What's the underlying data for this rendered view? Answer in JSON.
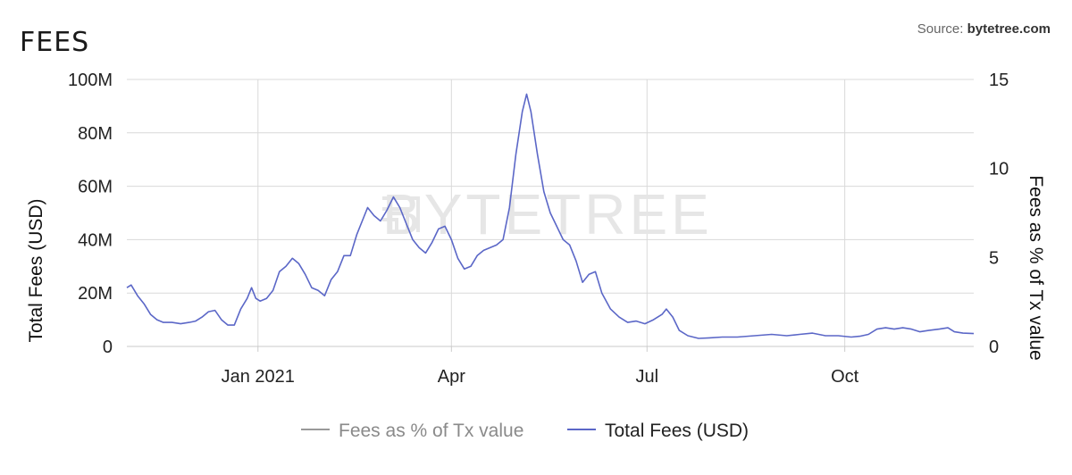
{
  "header": {
    "title": "FEES",
    "source_label": "Source:",
    "source_name": "bytetree.com"
  },
  "watermark": "BYTETREE",
  "chart_data": {
    "type": "line",
    "title": "FEES",
    "ylabel_left": "Total Fees (USD)",
    "ylabel_right": "Fees as % of Tx value",
    "ylim_left": [
      0,
      100000000
    ],
    "ylim_right": [
      0,
      15
    ],
    "yticks_left": [
      "0",
      "20M",
      "40M",
      "60M",
      "80M",
      "100M"
    ],
    "yticks_right": [
      "0",
      "5",
      "10",
      "15"
    ],
    "x_range": [
      "2020-11-01",
      "2021-11-30"
    ],
    "xticks": [
      {
        "label": "Jan 2021",
        "date": "2021-01-01"
      },
      {
        "label": "Apr",
        "date": "2021-04-01"
      },
      {
        "label": "Jul",
        "date": "2021-07-01"
      },
      {
        "label": "Oct",
        "date": "2021-10-01"
      }
    ],
    "grid": true,
    "legend_position": "bottom-center",
    "series": [
      {
        "name": "Fees as % of Tx value",
        "color": "#999999",
        "axis": "right",
        "points": []
      },
      {
        "name": "Total Fees (USD)",
        "color": "#5b67c7",
        "axis": "left",
        "points": [
          [
            "2020-11-01",
            22000000
          ],
          [
            "2020-11-03",
            23000000
          ],
          [
            "2020-11-06",
            19000000
          ],
          [
            "2020-11-09",
            16000000
          ],
          [
            "2020-11-12",
            12000000
          ],
          [
            "2020-11-15",
            10000000
          ],
          [
            "2020-11-18",
            9000000
          ],
          [
            "2020-11-22",
            9000000
          ],
          [
            "2020-11-26",
            8500000
          ],
          [
            "2020-11-30",
            9000000
          ],
          [
            "2020-12-03",
            9500000
          ],
          [
            "2020-12-06",
            11000000
          ],
          [
            "2020-12-09",
            13000000
          ],
          [
            "2020-12-12",
            13500000
          ],
          [
            "2020-12-15",
            10000000
          ],
          [
            "2020-12-18",
            8000000
          ],
          [
            "2020-12-21",
            8000000
          ],
          [
            "2020-12-24",
            14000000
          ],
          [
            "2020-12-27",
            18000000
          ],
          [
            "2020-12-29",
            22000000
          ],
          [
            "2020-12-31",
            18000000
          ],
          [
            "2021-01-02",
            17000000
          ],
          [
            "2021-01-05",
            18000000
          ],
          [
            "2021-01-08",
            21000000
          ],
          [
            "2021-01-11",
            28000000
          ],
          [
            "2021-01-14",
            30000000
          ],
          [
            "2021-01-17",
            33000000
          ],
          [
            "2021-01-20",
            31000000
          ],
          [
            "2021-01-23",
            27000000
          ],
          [
            "2021-01-26",
            22000000
          ],
          [
            "2021-01-29",
            21000000
          ],
          [
            "2021-02-01",
            19000000
          ],
          [
            "2021-02-04",
            25000000
          ],
          [
            "2021-02-07",
            28000000
          ],
          [
            "2021-02-10",
            34000000
          ],
          [
            "2021-02-13",
            34000000
          ],
          [
            "2021-02-16",
            42000000
          ],
          [
            "2021-02-19",
            48000000
          ],
          [
            "2021-02-21",
            52000000
          ],
          [
            "2021-02-24",
            49000000
          ],
          [
            "2021-02-27",
            47000000
          ],
          [
            "2021-03-02",
            51000000
          ],
          [
            "2021-03-05",
            56000000
          ],
          [
            "2021-03-08",
            52000000
          ],
          [
            "2021-03-11",
            46000000
          ],
          [
            "2021-03-14",
            40000000
          ],
          [
            "2021-03-17",
            37000000
          ],
          [
            "2021-03-20",
            35000000
          ],
          [
            "2021-03-23",
            39000000
          ],
          [
            "2021-03-26",
            44000000
          ],
          [
            "2021-03-29",
            45000000
          ],
          [
            "2021-04-01",
            40000000
          ],
          [
            "2021-04-04",
            33000000
          ],
          [
            "2021-04-07",
            29000000
          ],
          [
            "2021-04-10",
            30000000
          ],
          [
            "2021-04-13",
            34000000
          ],
          [
            "2021-04-16",
            36000000
          ],
          [
            "2021-04-19",
            37000000
          ],
          [
            "2021-04-22",
            38000000
          ],
          [
            "2021-04-25",
            40000000
          ],
          [
            "2021-04-28",
            52000000
          ],
          [
            "2021-05-01",
            72000000
          ],
          [
            "2021-05-04",
            88000000
          ],
          [
            "2021-05-06",
            94500000
          ],
          [
            "2021-05-08",
            88000000
          ],
          [
            "2021-05-11",
            72000000
          ],
          [
            "2021-05-14",
            58000000
          ],
          [
            "2021-05-17",
            50000000
          ],
          [
            "2021-05-20",
            45000000
          ],
          [
            "2021-05-23",
            40000000
          ],
          [
            "2021-05-26",
            38000000
          ],
          [
            "2021-05-29",
            32000000
          ],
          [
            "2021-06-01",
            24000000
          ],
          [
            "2021-06-04",
            27000000
          ],
          [
            "2021-06-07",
            28000000
          ],
          [
            "2021-06-10",
            20000000
          ],
          [
            "2021-06-14",
            14000000
          ],
          [
            "2021-06-18",
            11000000
          ],
          [
            "2021-06-22",
            9000000
          ],
          [
            "2021-06-26",
            9500000
          ],
          [
            "2021-06-30",
            8500000
          ],
          [
            "2021-07-04",
            10000000
          ],
          [
            "2021-07-08",
            12000000
          ],
          [
            "2021-07-10",
            14000000
          ],
          [
            "2021-07-13",
            11000000
          ],
          [
            "2021-07-16",
            6000000
          ],
          [
            "2021-07-20",
            4000000
          ],
          [
            "2021-07-25",
            3000000
          ],
          [
            "2021-07-30",
            3200000
          ],
          [
            "2021-08-05",
            3500000
          ],
          [
            "2021-08-12",
            3500000
          ],
          [
            "2021-08-20",
            4000000
          ],
          [
            "2021-08-28",
            4500000
          ],
          [
            "2021-09-04",
            4000000
          ],
          [
            "2021-09-10",
            4500000
          ],
          [
            "2021-09-16",
            5000000
          ],
          [
            "2021-09-22",
            4000000
          ],
          [
            "2021-09-28",
            4000000
          ],
          [
            "2021-10-04",
            3500000
          ],
          [
            "2021-10-08",
            3800000
          ],
          [
            "2021-10-12",
            4500000
          ],
          [
            "2021-10-16",
            6500000
          ],
          [
            "2021-10-20",
            7000000
          ],
          [
            "2021-10-24",
            6500000
          ],
          [
            "2021-10-28",
            7000000
          ],
          [
            "2021-11-01",
            6500000
          ],
          [
            "2021-11-05",
            5500000
          ],
          [
            "2021-11-09",
            6000000
          ],
          [
            "2021-11-14",
            6500000
          ],
          [
            "2021-11-18",
            7000000
          ],
          [
            "2021-11-21",
            5500000
          ],
          [
            "2021-11-25",
            5000000
          ],
          [
            "2021-11-30",
            4800000
          ]
        ]
      }
    ]
  }
}
